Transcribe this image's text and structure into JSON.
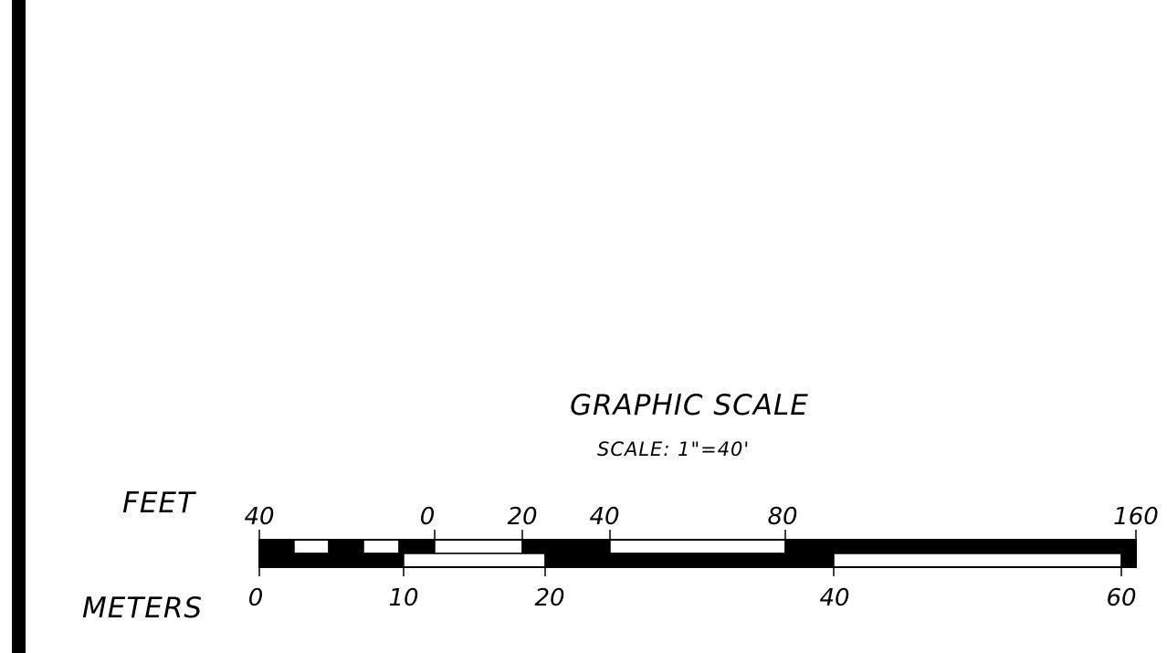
{
  "title": "GRAPHIC SCALE",
  "subtitle": "SCALE: 1\"=40'",
  "feet_label": "FEET",
  "meters_label": "METERS",
  "feet_ticks": [
    "40",
    "0",
    "20",
    "40",
    "80",
    "160"
  ],
  "meter_ticks": [
    "0",
    "10",
    "20",
    "40",
    "60"
  ],
  "colors": {
    "ink": "#000000",
    "paper": "#ffffff"
  }
}
